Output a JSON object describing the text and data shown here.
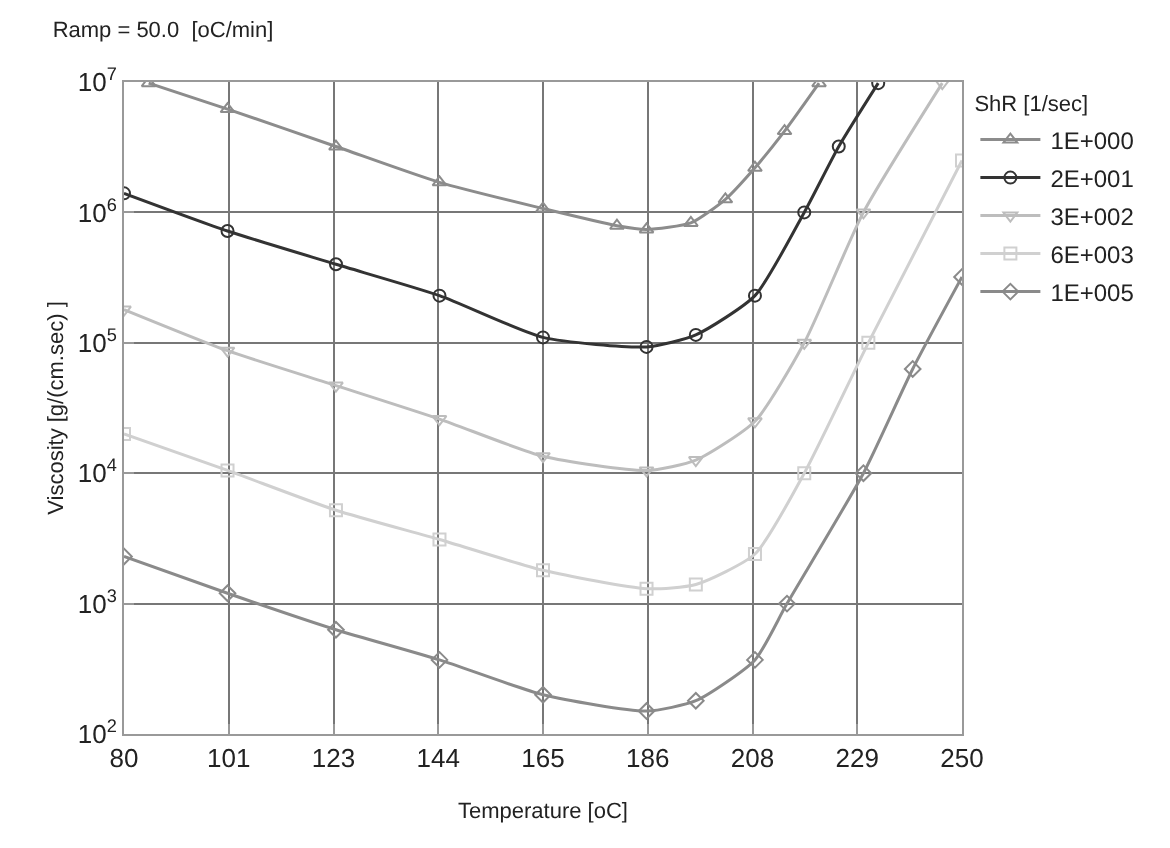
{
  "chart_data": {
    "type": "line",
    "title": "Ramp = 50.0  [oC/min]",
    "xlabel": "Temperature [oC]",
    "ylabel": "Viscosity [g/(cm.sec) ]",
    "legend_title": "ShR [1/sec]",
    "legend": "right",
    "grid": true,
    "log": "y",
    "line_style": "solid",
    "xlim": [
      80,
      250
    ],
    "xticks": [
      {
        "value": 80,
        "label": "80"
      },
      {
        "value": 101.25,
        "label": "101"
      },
      {
        "value": 122.5,
        "label": "123"
      },
      {
        "value": 143.75,
        "label": "144"
      },
      {
        "value": 165,
        "label": "165"
      },
      {
        "value": 186.25,
        "label": "186"
      },
      {
        "value": 207.5,
        "label": "208"
      },
      {
        "value": 228.75,
        "label": "229"
      },
      {
        "value": 250,
        "label": "250"
      }
    ],
    "ylim": [
      100,
      10000000
    ],
    "yticks": [
      {
        "value": 100,
        "label": "10$^{2}$"
      },
      {
        "value": 1000,
        "label": "10$^{3}$"
      },
      {
        "value": 10000,
        "label": "10$^{4}$"
      },
      {
        "value": 100000,
        "label": "10$^{5}$"
      },
      {
        "value": 1000000,
        "label": "10$^{6}$"
      },
      {
        "value": 10000000,
        "label": "10$^{7}$"
      }
    ],
    "series": [
      {
        "name": "1E+000",
        "color": "#8c8c8c",
        "marker": "triangle",
        "x": [
          85,
          101,
          123,
          144,
          165,
          180,
          186,
          195,
          202,
          208,
          214,
          221
        ],
        "values": [
          9800000,
          6200000,
          3200000,
          1700000,
          1070000,
          790000,
          740000,
          830000,
          1260000,
          2200000,
          4200000,
          9800000
        ]
      },
      {
        "name": "2E+001",
        "color": "#333333",
        "marker": "circle",
        "x": [
          80,
          101,
          123,
          144,
          165,
          186,
          196,
          208,
          218,
          225,
          233
        ],
        "values": [
          1400000,
          720000,
          400000,
          230000,
          110000,
          93000,
          115000,
          230000,
          1000000,
          3200000,
          9800000
        ]
      },
      {
        "name": "3E+002",
        "color": "#bdbdbd",
        "marker": "triangle-down",
        "x": [
          80,
          101,
          123,
          144,
          165,
          186,
          196,
          208,
          218,
          230,
          246
        ],
        "values": [
          180000,
          87000,
          47000,
          26000,
          13500,
          10500,
          12600,
          25000,
          100000,
          1000000,
          9800000
        ]
      },
      {
        "name": "6E+003",
        "color": "#d0d0d0",
        "marker": "square",
        "x": [
          80,
          101,
          123,
          144,
          165,
          186,
          196,
          208,
          218,
          231,
          250
        ],
        "values": [
          20000,
          10500,
          5200,
          3100,
          1800,
          1300,
          1400,
          2400,
          10000,
          100000,
          2500000
        ]
      },
      {
        "name": "1E+005",
        "color": "#8a8a8a",
        "marker": "diamond",
        "x": [
          80,
          101,
          123,
          144,
          165,
          186,
          196,
          208,
          214.5,
          230,
          240,
          250
        ],
        "values": [
          2300,
          1200,
          630,
          370,
          200,
          150,
          180,
          370,
          1000,
          10000,
          63000,
          320000
        ]
      }
    ]
  }
}
